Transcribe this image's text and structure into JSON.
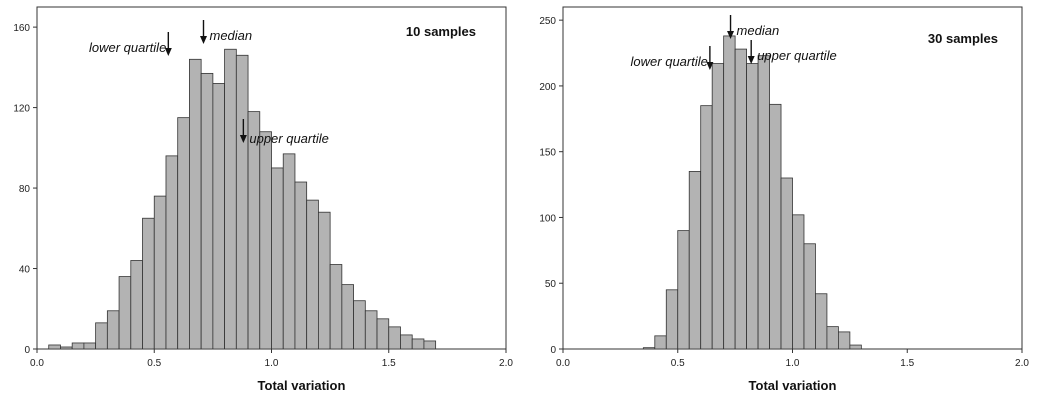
{
  "chart_data": [
    {
      "type": "bar",
      "label": "10 samples",
      "xlabel": "Total variation",
      "ylabel": "",
      "xlim": [
        0.0,
        2.0
      ],
      "ylim": [
        0,
        170
      ],
      "grid": false,
      "bin_width": 0.05,
      "x_tick_values": [
        0.0,
        0.5,
        1.0,
        1.5,
        2.0
      ],
      "x_tick_labels": [
        "0.0",
        "0.5",
        "1.0",
        "1.5",
        "2.0"
      ],
      "y_tick_values": [
        0,
        40,
        80,
        120,
        160
      ],
      "y_tick_labels": [
        "0",
        "40",
        "80",
        "120",
        "160"
      ],
      "bins": [
        0.075,
        0.125,
        0.175,
        0.225,
        0.275,
        0.325,
        0.375,
        0.425,
        0.475,
        0.525,
        0.575,
        0.625,
        0.675,
        0.725,
        0.775,
        0.825,
        0.875,
        0.925,
        0.975,
        1.025,
        1.075,
        1.125,
        1.175,
        1.225,
        1.275,
        1.325,
        1.375,
        1.425,
        1.475,
        1.525,
        1.575,
        1.625,
        1.675
      ],
      "values": [
        2,
        1,
        3,
        3,
        13,
        19,
        36,
        44,
        65,
        76,
        96,
        115,
        144,
        137,
        132,
        149,
        146,
        118,
        108,
        90,
        97,
        83,
        74,
        68,
        42,
        32,
        24,
        19,
        15,
        11,
        7,
        5,
        4
      ],
      "annotations": [
        {
          "text": "lower quartile",
          "x": 0.56
        },
        {
          "text": "median",
          "x": 0.71
        },
        {
          "text": "upper quartile",
          "x": 0.88
        }
      ]
    },
    {
      "type": "bar",
      "label": "30 samples",
      "xlabel": "Total variation",
      "ylabel": "",
      "xlim": [
        0.0,
        2.0
      ],
      "ylim": [
        0,
        260
      ],
      "grid": false,
      "bin_width": 0.05,
      "x_tick_values": [
        0.0,
        0.5,
        1.0,
        1.5,
        2.0
      ],
      "x_tick_labels": [
        "0.0",
        "0.5",
        "1.0",
        "1.5",
        "2.0"
      ],
      "y_tick_values": [
        0,
        50,
        100,
        150,
        200,
        250
      ],
      "y_tick_labels": [
        "0",
        "50",
        "100",
        "150",
        "200",
        "250"
      ],
      "bins": [
        0.375,
        0.425,
        0.475,
        0.525,
        0.575,
        0.625,
        0.675,
        0.725,
        0.775,
        0.825,
        0.875,
        0.925,
        0.975,
        1.025,
        1.075,
        1.125,
        1.175,
        1.225,
        1.275
      ],
      "values": [
        1,
        10,
        45,
        90,
        135,
        185,
        217,
        238,
        228,
        217,
        223,
        186,
        130,
        102,
        80,
        42,
        17,
        13,
        3
      ],
      "annotations": [
        {
          "text": "lower quartile",
          "x": 0.64
        },
        {
          "text": "median",
          "x": 0.73
        },
        {
          "text": "upper quartile",
          "x": 0.82
        }
      ]
    }
  ]
}
